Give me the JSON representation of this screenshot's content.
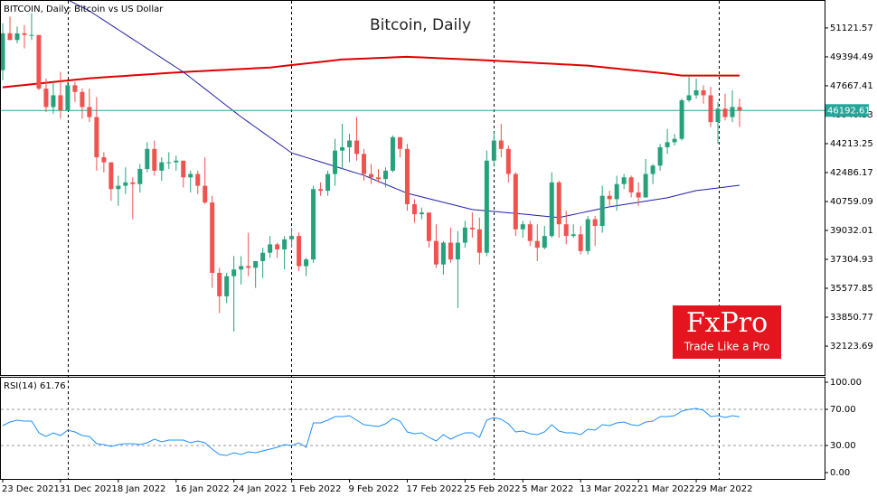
{
  "header": "BITCOIN, Daily: Bitcoin vs US Dollar",
  "logo": {
    "name": "FxPro",
    "tagline": "Trade Like a Pro"
  },
  "chart_data": [
    {
      "type": "candlestick",
      "title": "Bitcoin, Daily",
      "categories": [
        "23 Dec 2021",
        null,
        null,
        null,
        null,
        null,
        null,
        null,
        "31 Dec 2021",
        null,
        null,
        null,
        null,
        null,
        null,
        null,
        "8 Jan 2022",
        null,
        null,
        null,
        null,
        null,
        null,
        null,
        "16 Jan 2022",
        null,
        null,
        null,
        null,
        null,
        null,
        null,
        "24 Jan 2022",
        null,
        null,
        null,
        null,
        null,
        null,
        null,
        "1 Feb 2022",
        null,
        null,
        null,
        null,
        null,
        null,
        null,
        "9 Feb 2022",
        null,
        null,
        null,
        null,
        null,
        null,
        null,
        "17 Feb 2022",
        null,
        null,
        null,
        null,
        null,
        null,
        null,
        "25 Feb 2022",
        null,
        null,
        null,
        null,
        null,
        null,
        null,
        "5 Mar 2022",
        null,
        null,
        null,
        null,
        null,
        null,
        null,
        "13 Mar 2022",
        null,
        null,
        null,
        null,
        null,
        null,
        null,
        "21 Mar 2022",
        null,
        null,
        null,
        null,
        null,
        null,
        null,
        "29 Mar 2022",
        null,
        null,
        null,
        null,
        null,
        null
      ],
      "open": [
        48600,
        50800,
        50400,
        50800,
        50700,
        50700,
        47500,
        46400,
        47100,
        46200,
        47700,
        47300,
        46400,
        45800,
        43400,
        43100,
        41500,
        41700,
        41900,
        41800,
        42700,
        43900,
        42600,
        43100,
        43100,
        43200,
        42200,
        42400,
        41700,
        40700,
        36500,
        35100,
        36300,
        36700,
        36900,
        36800,
        37200,
        37700,
        38200,
        37900,
        38500,
        38700,
        36900,
        37300,
        41500,
        41400,
        42400,
        43800,
        44000,
        44400,
        43600,
        42400,
        42200,
        42100,
        42600,
        44600,
        43900,
        40600,
        40000,
        40100,
        38400,
        37000,
        38300,
        37300,
        38300,
        39200,
        39100,
        37700,
        43200,
        44400,
        43900,
        42400,
        39100,
        39400,
        38400,
        38000,
        38700,
        41900,
        39400,
        38700,
        38800,
        37800,
        39700,
        39300,
        41100,
        40900,
        41800,
        42200,
        41300,
        41000,
        42400,
        42900,
        44000,
        44300,
        44500,
        46800,
        47100,
        47400,
        47100,
        45500,
        46300,
        45800,
        46400
      ],
      "high": [
        51400,
        51800,
        51200,
        51300,
        52000,
        50700,
        48100,
        47900,
        48500,
        47900,
        47900,
        47500,
        47500,
        47000,
        43700,
        43100,
        42300,
        42800,
        42200,
        43000,
        44300,
        44400,
        43400,
        43700,
        43500,
        43200,
        42600,
        42600,
        43400,
        41100,
        36800,
        36500,
        37500,
        37500,
        38900,
        37200,
        38000,
        38700,
        38300,
        38700,
        39200,
        38900,
        37400,
        41700,
        41900,
        42600,
        44500,
        45400,
        44800,
        45800,
        43900,
        43000,
        42700,
        42800,
        44700,
        44600,
        44200,
        40900,
        40400,
        40100,
        39400,
        38400,
        39200,
        39000,
        39600,
        40100,
        39800,
        43800,
        44900,
        45400,
        44100,
        42500,
        39600,
        39600,
        39400,
        39300,
        42500,
        42000,
        40200,
        39400,
        39300,
        39900,
        39900,
        41700,
        41400,
        42300,
        42400,
        42300,
        41900,
        43300,
        43000,
        44200,
        45100,
        44800,
        46900,
        48200,
        48100,
        47700,
        47600,
        46700,
        47200,
        47400,
        46900
      ],
      "low": [
        48000,
        50400,
        50200,
        49900,
        50400,
        47400,
        46100,
        46000,
        45700,
        46200,
        46700,
        45700,
        45500,
        42600,
        42500,
        40800,
        40500,
        41200,
        39700,
        41300,
        42500,
        42300,
        42000,
        42700,
        42600,
        41600,
        41300,
        41200,
        40600,
        35600,
        34100,
        34700,
        33000,
        35800,
        36300,
        35600,
        36200,
        37400,
        37400,
        36700,
        38000,
        36600,
        36300,
        37100,
        41100,
        41100,
        41700,
        42700,
        43100,
        43200,
        42000,
        41800,
        41900,
        41600,
        42500,
        43400,
        40200,
        39500,
        39700,
        38000,
        36800,
        36400,
        37100,
        34400,
        38000,
        38600,
        37000,
        37500,
        42900,
        43400,
        41900,
        38700,
        38600,
        38100,
        37200,
        37900,
        38600,
        38600,
        38200,
        38600,
        37600,
        37600,
        38100,
        38900,
        40500,
        40200,
        41500,
        41000,
        40500,
        41000,
        41800,
        42600,
        43600,
        44100,
        44400,
        46700,
        46900,
        46600,
        45200,
        44200,
        45600,
        45500,
        45200
      ],
      "close": [
        50800,
        50400,
        50800,
        50700,
        50700,
        47500,
        46400,
        47100,
        46200,
        47700,
        47300,
        46400,
        45800,
        43400,
        43100,
        41500,
        41700,
        41900,
        41800,
        42700,
        43900,
        42600,
        43100,
        43100,
        43200,
        42200,
        42400,
        41700,
        40700,
        36500,
        35100,
        36300,
        36700,
        36900,
        36800,
        37200,
        37700,
        38200,
        37900,
        38500,
        38700,
        36900,
        37300,
        41500,
        41400,
        42400,
        43800,
        44000,
        44400,
        43600,
        42400,
        42200,
        42100,
        42600,
        44600,
        43900,
        40600,
        40000,
        40100,
        38400,
        37000,
        38300,
        37300,
        38300,
        39200,
        39100,
        37700,
        43200,
        44400,
        43900,
        42400,
        39100,
        39400,
        38400,
        38000,
        38700,
        41900,
        39400,
        38700,
        38800,
        37800,
        39700,
        39300,
        41100,
        40900,
        41800,
        42200,
        41300,
        41000,
        42400,
        42900,
        44000,
        44300,
        44500,
        46800,
        47100,
        47400,
        47100,
        45500,
        46300,
        45800,
        46400,
        46192.61
      ],
      "up_color": "#26a17c",
      "down_color": "#ef5350",
      "last_price_label": "46192.61",
      "last_price_color": "#26a69a",
      "ylim": [
        30400,
        52790
      ],
      "yticks": [
        32123.69,
        33850.77,
        35577.85,
        37304.93,
        39032.01,
        40759.09,
        42486.17,
        44213.25,
        45940.33,
        47667.41,
        49394.49,
        51121.57
      ],
      "overlays": [
        {
          "type": "line",
          "color": "#e00000",
          "values": [
            47580,
            47625,
            47670,
            47714,
            47759,
            47804,
            47849,
            47893,
            47938,
            47983,
            48028,
            48072,
            48117,
            48146,
            48174,
            48203,
            48232,
            48260,
            48289,
            48318,
            48347,
            48375,
            48404,
            48433,
            48461,
            48490,
            48512,
            48535,
            48558,
            48580,
            48602,
            48625,
            48648,
            48670,
            48692,
            48715,
            48738,
            48760,
            48808,
            48856,
            48904,
            48952,
            49000,
            49048,
            49096,
            49144,
            49192,
            49240,
            49258,
            49276,
            49293,
            49311,
            49329,
            49347,
            49364,
            49382,
            49400,
            49381,
            49362,
            49343,
            49324,
            49305,
            49286,
            49267,
            49248,
            49229,
            49210,
            49190,
            49167,
            49144,
            49121,
            49098,
            49076,
            49053,
            49030,
            49007,
            48984,
            48961,
            48938,
            48916,
            48893,
            48870,
            48826,
            48783,
            48739,
            48696,
            48652,
            48608,
            48565,
            48521,
            48478,
            48434,
            48390,
            48335,
            48280,
            48280,
            48280,
            48280,
            48280,
            48280,
            48280,
            48280,
            48280
          ]
        },
        {
          "type": "line",
          "color": "#1f1fa8",
          "values": [
            null,
            null,
            null,
            null,
            null,
            null,
            null,
            null,
            53020,
            52800,
            52580,
            52360,
            52140,
            51859,
            51578,
            51298,
            51017,
            50736,
            50455,
            50174,
            49894,
            49613,
            49332,
            49051,
            48771,
            48490,
            48155,
            47820,
            47485,
            47150,
            46815,
            46480,
            46145,
            45810,
            45503,
            45196,
            44889,
            44581,
            44274,
            43967,
            43660,
            43526,
            43392,
            43258,
            43124,
            42990,
            42856,
            42722,
            42588,
            42454,
            42320,
            42142,
            41963,
            41785,
            41607,
            41428,
            41250,
            41142,
            41034,
            40927,
            40819,
            40711,
            40603,
            40496,
            40388,
            40280,
            40241,
            40203,
            40164,
            40126,
            40087,
            40049,
            40010,
            39968,
            39926,
            39884,
            39842,
            39800,
            39891,
            39983,
            40074,
            40166,
            40257,
            40349,
            40440,
            40508,
            40575,
            40643,
            40710,
            40778,
            40845,
            40913,
            40980,
            41088,
            41195,
            41303,
            41410,
            41463,
            41517,
            41570,
            41623,
            41677,
            41730
          ]
        }
      ]
    },
    {
      "type": "line",
      "title": "RSI(14) 61.76",
      "color": "#1e90ff",
      "values": [
        52,
        56,
        58,
        57,
        57,
        44,
        40,
        44,
        41,
        47,
        45,
        41,
        40,
        32,
        31,
        29,
        31,
        32,
        32,
        31,
        33,
        37,
        34,
        36,
        36,
        36,
        33,
        35,
        33,
        26,
        20,
        19,
        22,
        20,
        23,
        22,
        24,
        26,
        28,
        31,
        30,
        33,
        28,
        55,
        55,
        58,
        62,
        62,
        63,
        58,
        53,
        52,
        51,
        54,
        60,
        57,
        45,
        43,
        44,
        39,
        35,
        42,
        37,
        41,
        44,
        44,
        39,
        58,
        61,
        59,
        54,
        45,
        46,
        43,
        42,
        45,
        53,
        46,
        44,
        44,
        42,
        48,
        47,
        53,
        52,
        55,
        56,
        53,
        52,
        56,
        57,
        62,
        62,
        63,
        68,
        70,
        71,
        69,
        62,
        63,
        61,
        63,
        61.76
      ],
      "ylim": [
        -7,
        106
      ],
      "yticks": [
        {
          "value": 0,
          "label": "0.00"
        },
        {
          "value": 30,
          "label": "30.00"
        },
        {
          "value": 70,
          "label": "70.00"
        },
        {
          "value": 100,
          "label": "100.00"
        }
      ],
      "levels": [
        70,
        30
      ]
    }
  ]
}
